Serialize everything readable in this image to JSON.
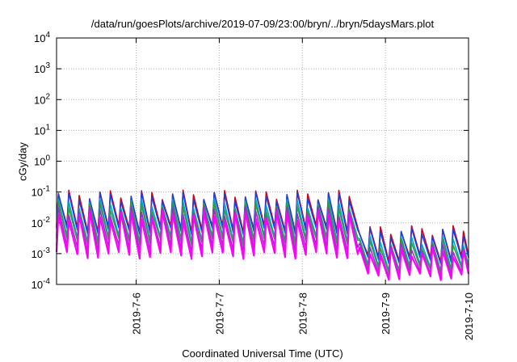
{
  "chart_data": {
    "type": "line",
    "title": "/data/run/goesPlots/archive/2019-07-09/23:00/bryn/../bryn/5daysMars.plot",
    "xlabel": "Coordinated Universal Time (UTC)",
    "ylabel": "cGy/day",
    "x_range": [
      "2019-07-05T01:00",
      "2019-07-10T00:00"
    ],
    "x_ticks": [
      "2019-7-6",
      "2019-7-7",
      "2019-7-8",
      "2019-7-9",
      "2019-7-10"
    ],
    "y_scale": "log",
    "ylim": [
      0.0001,
      10000
    ],
    "y_ticks": [
      {
        "base": "10",
        "exp": "-4"
      },
      {
        "base": "10",
        "exp": "-3"
      },
      {
        "base": "10",
        "exp": "-2"
      },
      {
        "base": "10",
        "exp": "-1"
      },
      {
        "base": "10",
        "exp": "0"
      },
      {
        "base": "10",
        "exp": "1"
      },
      {
        "base": "10",
        "exp": "2"
      },
      {
        "base": "10",
        "exp": "3"
      },
      {
        "base": "10",
        "exp": "4"
      }
    ],
    "grid": true,
    "series": [
      {
        "color": "#d0021b",
        "peak": [
          0.085,
          0.006
        ],
        "trough": [
          0.0065,
          0.0007
        ]
      },
      {
        "color": "#1f3fd8",
        "peak": [
          0.075,
          0.005
        ],
        "trough": [
          0.0055,
          0.0006
        ]
      },
      {
        "color": "#00a6c8",
        "peak": [
          0.045,
          0.0028
        ],
        "trough": [
          0.003,
          0.00035
        ]
      },
      {
        "color": "#2e9e3e",
        "peak": [
          0.035,
          0.0022
        ],
        "trough": [
          0.0025,
          0.0003
        ]
      },
      {
        "color": "#9b2fc4",
        "peak": [
          0.025,
          0.0016
        ],
        "trough": [
          0.0015,
          0.00022
        ]
      },
      {
        "color": "#ff00ff",
        "peak": [
          0.018,
          0.0012
        ],
        "trough": [
          0.0009,
          0.00018
        ]
      }
    ],
    "drop_date": "2019-07-08T14:30",
    "cycle_hours": 3
  }
}
